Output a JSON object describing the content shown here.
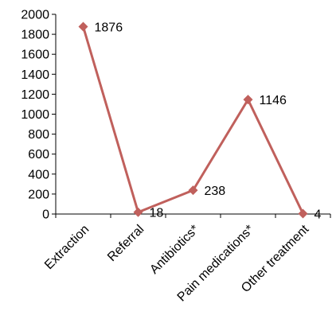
{
  "chart_data": {
    "type": "line",
    "categories": [
      "Extraction",
      "Referral",
      "Antibiotics*",
      "Pain medications*",
      "Other treatment"
    ],
    "series": [
      {
        "values": [
          1876,
          18,
          238,
          1146,
          4
        ],
        "data_labels": [
          "1876",
          "18",
          "238",
          "1146",
          "4"
        ]
      }
    ],
    "ylim": [
      0,
      2000
    ],
    "y_ticks": [
      "0",
      "200",
      "400",
      "600",
      "800",
      "1000",
      "1200",
      "1400",
      "1600",
      "1800",
      "2000"
    ],
    "grid": false,
    "legend": "none",
    "line_color": "#c0605c",
    "marker_color": "#c0605c",
    "marker": "diamond"
  }
}
